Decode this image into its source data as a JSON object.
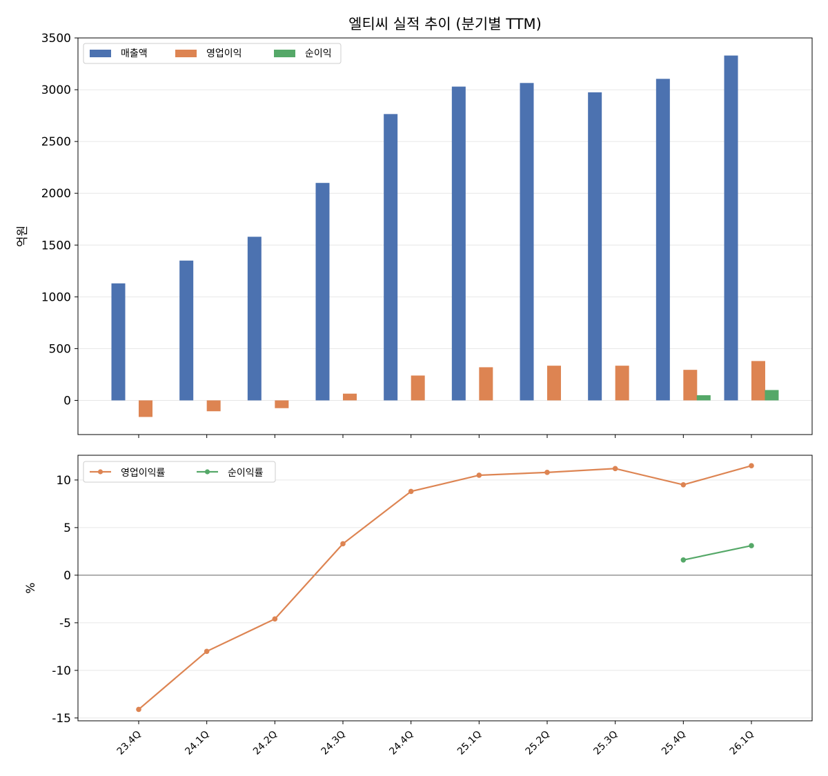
{
  "chart_data": [
    {
      "type": "bar",
      "title": "엘티씨 실적 추이 (분기별 TTM)",
      "ylabel": "억원",
      "ylim": [
        -330,
        3500
      ],
      "yticks": [
        0,
        500,
        1000,
        1500,
        2000,
        2500,
        3000,
        3500
      ],
      "grid": true,
      "legend": "top-left",
      "categories": [
        "23.4Q",
        "24.1Q",
        "24.2Q",
        "24.3Q",
        "24.4Q",
        "25.1Q",
        "25.2Q",
        "25.3Q",
        "25.4Q",
        "26.1Q"
      ],
      "series": [
        {
          "name": "매출액",
          "color": "#4c72b0",
          "values": [
            1130,
            1350,
            1580,
            2100,
            2765,
            3030,
            3065,
            2975,
            3105,
            3330
          ]
        },
        {
          "name": "영업이익",
          "color": "#dd8452",
          "values": [
            -160,
            -105,
            -75,
            65,
            240,
            320,
            335,
            335,
            295,
            380
          ]
        },
        {
          "name": "순이익",
          "color": "#55a868",
          "values": [
            null,
            null,
            null,
            null,
            null,
            null,
            null,
            null,
            50,
            100
          ]
        }
      ]
    },
    {
      "type": "line",
      "ylabel": "%",
      "ylim": [
        -15.3,
        12.6
      ],
      "yticks": [
        -15,
        -10,
        -5,
        0,
        5,
        10
      ],
      "grid": true,
      "legend": "top-left",
      "zero_line": true,
      "categories": [
        "23.4Q",
        "24.1Q",
        "24.2Q",
        "24.3Q",
        "24.4Q",
        "25.1Q",
        "25.2Q",
        "25.3Q",
        "25.4Q",
        "26.1Q"
      ],
      "series": [
        {
          "name": "영업이익률",
          "color": "#dd8452",
          "values": [
            -14.1,
            -8.0,
            -4.6,
            3.3,
            8.8,
            10.5,
            10.8,
            11.2,
            9.5,
            11.5
          ]
        },
        {
          "name": "순이익률",
          "color": "#55a868",
          "values": [
            null,
            null,
            null,
            null,
            null,
            null,
            null,
            null,
            1.6,
            3.1
          ]
        }
      ]
    }
  ]
}
